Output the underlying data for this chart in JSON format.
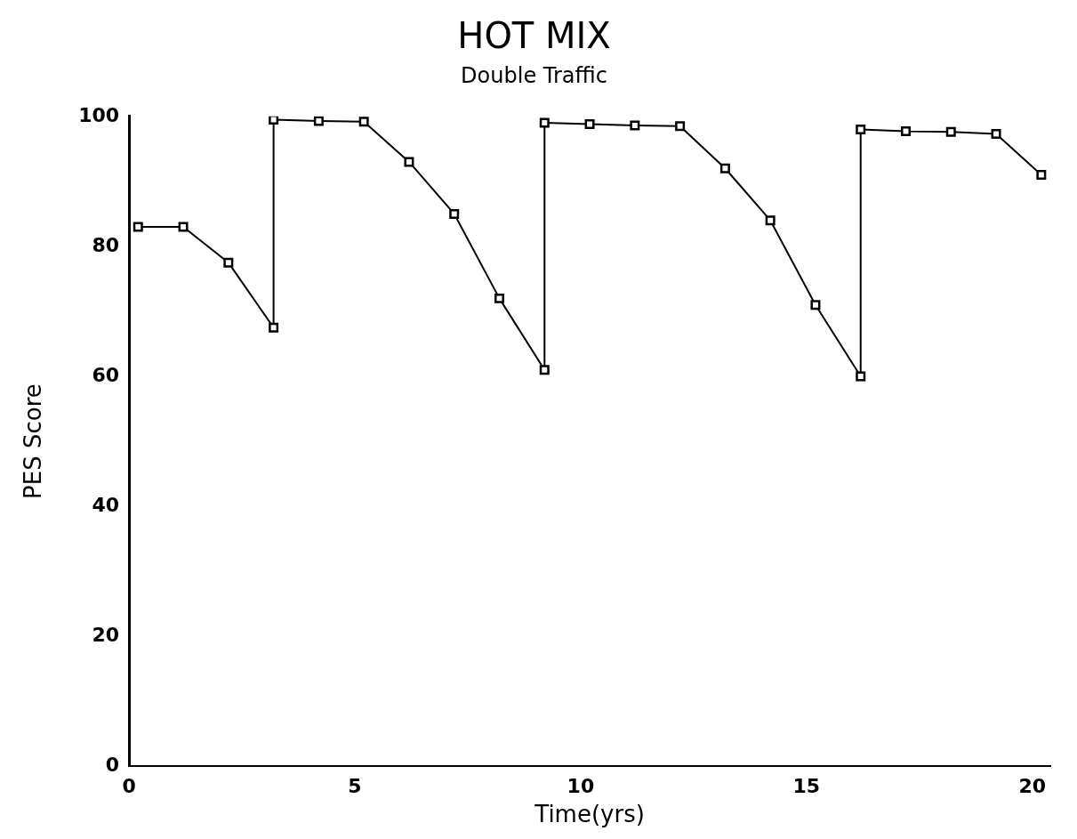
{
  "chart_data": {
    "type": "line",
    "title": "HOT MIX",
    "subtitle": "Double Traffic",
    "xlabel": "Time(yrs)",
    "ylabel": "PES Score",
    "x": [
      0.2,
      1.2,
      2.2,
      3.2,
      3.2,
      4.2,
      5.2,
      6.2,
      7.2,
      8.2,
      9.2,
      9.2,
      10.2,
      11.2,
      12.2,
      13.2,
      14.2,
      15.2,
      16.2,
      16.2,
      17.2,
      18.2,
      19.2,
      20.2
    ],
    "series": [
      {
        "color": "#000000",
        "values": [
          83,
          83,
          77.5,
          67.5,
          99.5,
          99.3,
          99.2,
          93,
          85,
          72,
          61,
          99,
          98.8,
          98.6,
          98.5,
          92,
          84,
          71,
          60,
          98,
          97.7,
          97.6,
          97.3,
          91
        ]
      }
    ],
    "xlim": [
      0,
      20.4
    ],
    "xticks": [
      0,
      5,
      10,
      15,
      20
    ],
    "ylim": [
      0,
      100
    ],
    "yticks": [
      0,
      20,
      40,
      60,
      80,
      100
    ],
    "grid": false,
    "legend": false,
    "marker": "square",
    "line_style": "solid"
  }
}
